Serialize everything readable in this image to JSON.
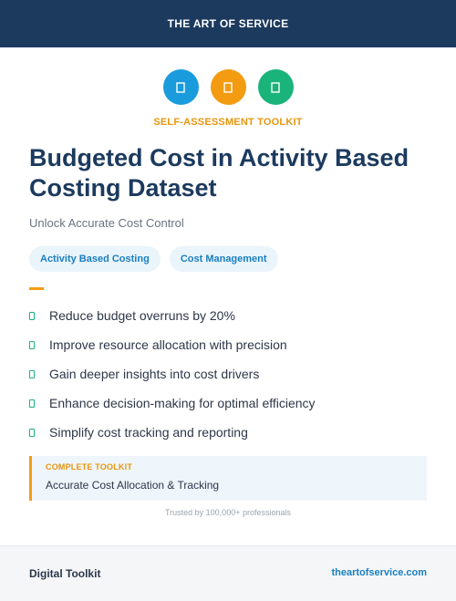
{
  "header": {
    "brand": "THE ART OF SERVICE"
  },
  "icons": [
    {
      "name": "blue-badge-icon",
      "color": "#1a9bdc"
    },
    {
      "name": "orange-badge-icon",
      "color": "#f39c12"
    },
    {
      "name": "green-badge-icon",
      "color": "#1ab37a"
    }
  ],
  "kicker": "SELF-ASSESSMENT TOOLKIT",
  "title": "Budgeted Cost in Activity Based Costing Dataset",
  "subtitle": "Unlock Accurate Cost Control",
  "tags": [
    "Activity Based Costing",
    "Cost Management"
  ],
  "benefits": [
    "Reduce budget overruns by 20%",
    "Improve resource allocation with precision",
    "Gain deeper insights into cost drivers",
    "Enhance decision-making for optimal efficiency",
    "Simplify cost tracking and reporting"
  ],
  "callout": {
    "label": "COMPLETE TOOLKIT",
    "text": "Accurate Cost Allocation & Tracking"
  },
  "trusted": "Trusted by 100,000+ professionals",
  "footer": {
    "left": "Digital Toolkit",
    "right": "theartofservice.com"
  }
}
